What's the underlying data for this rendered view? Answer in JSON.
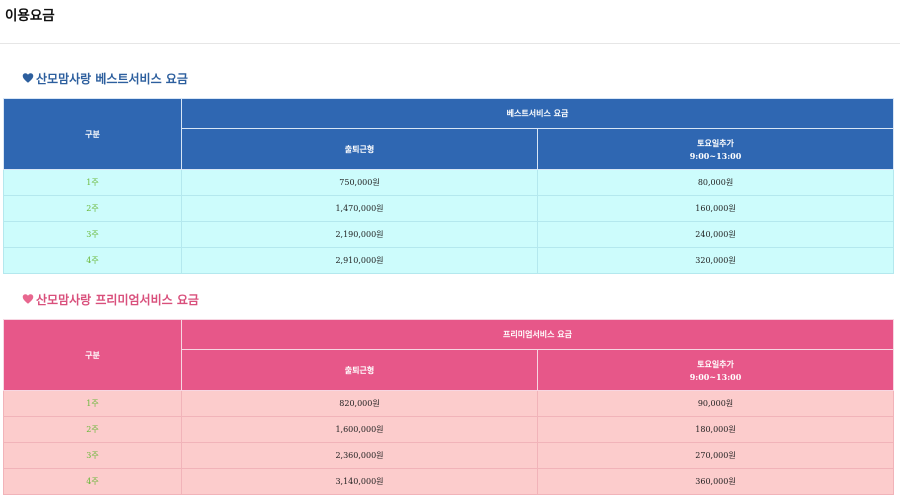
{
  "page": {
    "title": "이용요금"
  },
  "best": {
    "section_title": "산모맘사랑 베스트서비스 요금",
    "header": {
      "gubun": "구분",
      "service": "베스트서비스 요금",
      "col_commute": "출퇴근형",
      "col_saturday": "토요일추가",
      "col_saturday_time": "9:00~13:00"
    },
    "rows": [
      {
        "week": "1주",
        "commute": "750,000원",
        "saturday": "80,000원"
      },
      {
        "week": "2주",
        "commute": "1,470,000원",
        "saturday": "160,000원"
      },
      {
        "week": "3주",
        "commute": "2,190,000원",
        "saturday": "240,000원"
      },
      {
        "week": "4주",
        "commute": "2,910,000원",
        "saturday": "320,000원"
      }
    ],
    "colors": {
      "header": "#2f67b2",
      "row": "#cdfcfc",
      "heart": "#2d5f9e"
    }
  },
  "premium": {
    "section_title": "산모맘사랑 프리미엄서비스 요금",
    "header": {
      "gubun": "구분",
      "service": "프리미엄서비스 요금",
      "col_commute": "출퇴근형",
      "col_saturday": "토요일추가",
      "col_saturday_time": "9:00~13:00"
    },
    "rows": [
      {
        "week": "1주",
        "commute": "820,000원",
        "saturday": "90,000원"
      },
      {
        "week": "2주",
        "commute": "1,600,000원",
        "saturday": "180,000원"
      },
      {
        "week": "3주",
        "commute": "2,360,000원",
        "saturday": "270,000원"
      },
      {
        "week": "4주",
        "commute": "3,140,000원",
        "saturday": "360,000원"
      }
    ],
    "colors": {
      "header": "#e75789",
      "row": "#fccccc",
      "heart": "#d9507c"
    }
  },
  "icons": {
    "section_marker": "heart-icon"
  }
}
